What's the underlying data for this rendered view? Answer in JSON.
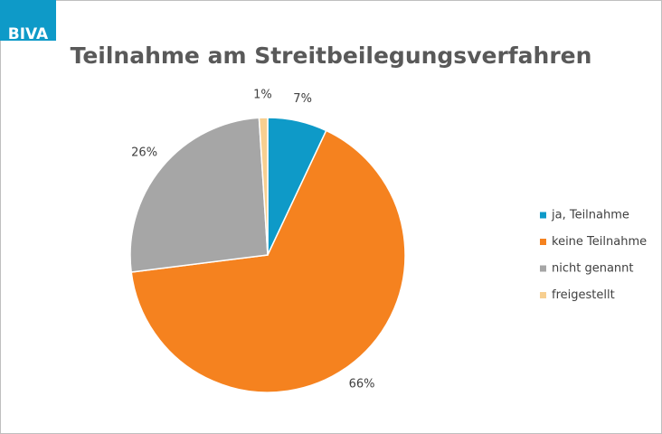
{
  "logo": "BIVA",
  "chart_data": {
    "type": "pie",
    "title": "Teilnahme am Streitbeilegungsverfahren",
    "categories": [
      "ja, Teilnahme",
      "keine Teilnahme",
      "nicht genannt",
      "freigestellt"
    ],
    "values": [
      7,
      66,
      26,
      1
    ],
    "value_labels": [
      "7%",
      "66%",
      "26%",
      "1%"
    ],
    "colors": [
      "#0e9ac8",
      "#f5821f",
      "#a6a6a6",
      "#f7cf90"
    ],
    "legend": "right"
  }
}
